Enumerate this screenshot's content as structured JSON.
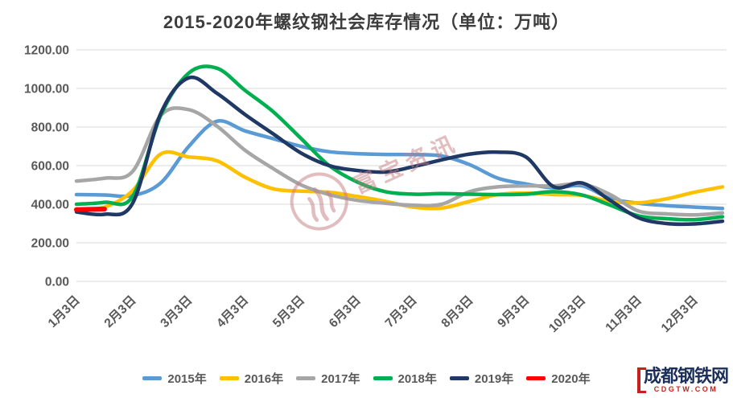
{
  "watermark": {
    "text": "富宝资讯"
  },
  "logo": {
    "text": "成都钢铁网",
    "sub": "CDGTW.COM"
  },
  "chart_data": {
    "type": "line",
    "title": "2015-2020年螺纹钢社会库存情况（单位：万吨）",
    "unit": "万吨",
    "ylim": [
      0,
      1200
    ],
    "y_ticks": [
      1200,
      1000,
      800,
      600,
      400,
      200,
      0
    ],
    "y_tick_labels": [
      "1200.00",
      "1000.00",
      "800.00",
      "600.00",
      "400.00",
      "200.00",
      "0.00"
    ],
    "x_tick_labels": [
      "1月3日",
      "2月3日",
      "3月3日",
      "4月3日",
      "5月3日",
      "6月3日",
      "7月3日",
      "8月3日",
      "9月3日",
      "10月3日",
      "11月3日",
      "12月3日"
    ],
    "x": [
      "1/3",
      "1/18",
      "2/3",
      "2/18",
      "3/3",
      "3/18",
      "4/3",
      "4/18",
      "5/3",
      "5/18",
      "6/3",
      "6/18",
      "7/3",
      "7/18",
      "8/3",
      "8/18",
      "9/3",
      "9/18",
      "10/3",
      "10/18",
      "11/3",
      "11/18",
      "12/3",
      "12/18"
    ],
    "grid": "horizontal",
    "legend_position": "bottom",
    "series": [
      {
        "name": "2015年",
        "color": "#5B9BD5",
        "values": [
          450,
          448,
          445,
          510,
          700,
          830,
          780,
          740,
          700,
          672,
          662,
          658,
          657,
          650,
          605,
          535,
          505,
          485,
          495,
          430,
          405,
          393,
          385,
          378
        ]
      },
      {
        "name": "2016年",
        "color": "#FFC000",
        "values": [
          372,
          385,
          470,
          660,
          645,
          625,
          540,
          480,
          468,
          462,
          440,
          415,
          385,
          380,
          415,
          450,
          458,
          450,
          446,
          415,
          407,
          428,
          462,
          490
        ]
      },
      {
        "name": "2017年",
        "color": "#A6A6A6",
        "values": [
          520,
          535,
          570,
          860,
          890,
          805,
          680,
          585,
          500,
          450,
          420,
          405,
          395,
          400,
          465,
          490,
          495,
          495,
          505,
          450,
          365,
          350,
          345,
          355
        ]
      },
      {
        "name": "2018年",
        "color": "#00B050",
        "values": [
          400,
          410,
          440,
          860,
          1080,
          1105,
          990,
          880,
          740,
          600,
          515,
          465,
          452,
          455,
          452,
          450,
          452,
          465,
          448,
          395,
          340,
          325,
          320,
          335
        ]
      },
      {
        "name": "2019年",
        "color": "#1F3864",
        "values": [
          360,
          348,
          405,
          870,
          1055,
          975,
          865,
          765,
          665,
          600,
          575,
          567,
          595,
          630,
          660,
          670,
          645,
          490,
          510,
          420,
          330,
          300,
          298,
          312
        ]
      },
      {
        "name": "2020年",
        "color": "#FF0000",
        "values": [
          372,
          375,
          null,
          null,
          null,
          null,
          null,
          null,
          null,
          null,
          null,
          null,
          null,
          null,
          null,
          null,
          null,
          null,
          null,
          null,
          null,
          null,
          null,
          null
        ]
      }
    ]
  }
}
